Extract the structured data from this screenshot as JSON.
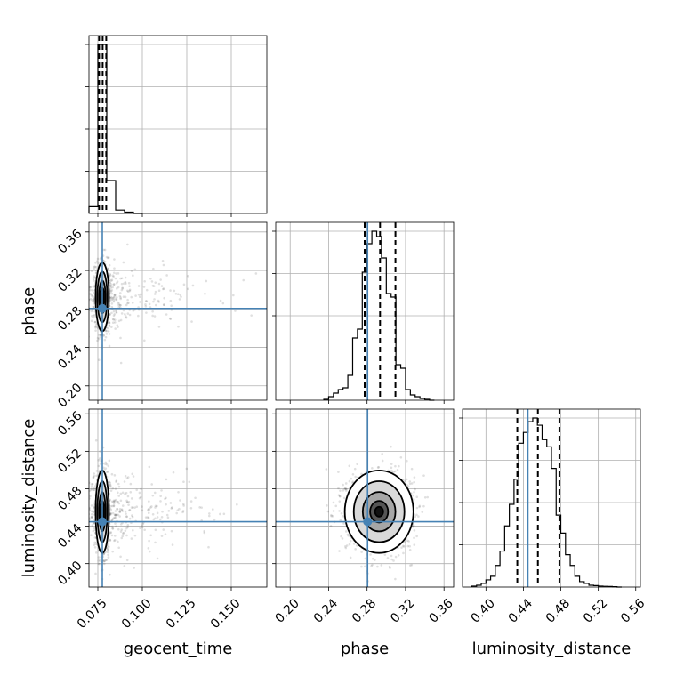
{
  "chart_data": {
    "type": "scatter",
    "subtype": "corner-plot",
    "parameters": [
      "geocent_time",
      "phase",
      "luminosity_distance"
    ],
    "axis_labels": {
      "geocent_time": "geocent_time",
      "phase": "phase",
      "luminosity_distance": "luminosity_distance"
    },
    "ranges": {
      "geocent_time": [
        0.07,
        0.17
      ],
      "phase": [
        0.185,
        0.37
      ],
      "luminosity_distance": [
        0.375,
        0.565
      ]
    },
    "ticks": {
      "geocent_time": [
        "0.075",
        "0.100",
        "0.125",
        "0.150"
      ],
      "phase": [
        "0.20",
        "0.24",
        "0.28",
        "0.32",
        "0.36"
      ],
      "luminosity_distance": [
        "0.40",
        "0.44",
        "0.48",
        "0.52",
        "0.56"
      ]
    },
    "truths": {
      "geocent_time": 0.0775,
      "phase": 0.2805,
      "luminosity_distance": 0.4448
    },
    "quantiles": {
      "geocent_time": [
        0.0757,
        0.0777,
        0.0797
      ],
      "phase": [
        0.2775,
        0.2935,
        0.3095
      ],
      "luminosity_distance": [
        0.4335,
        0.4555,
        0.4785
      ]
    },
    "histograms": {
      "geocent_time": {
        "edges": [
          0.07,
          0.075,
          0.08,
          0.085,
          0.09,
          0.095,
          0.1
        ],
        "counts": [
          0.04,
          1.0,
          0.195,
          0.02,
          0.008,
          0.0
        ]
      },
      "phase": {
        "edges": [
          0.235,
          0.24,
          0.245,
          0.25,
          0.255,
          0.26,
          0.265,
          0.27,
          0.275,
          0.28,
          0.285,
          0.29,
          0.295,
          0.3,
          0.305,
          0.31,
          0.315,
          0.32,
          0.325,
          0.33,
          0.335,
          0.34,
          0.345,
          0.35
        ],
        "counts": [
          0.005,
          0.02,
          0.04,
          0.06,
          0.07,
          0.14,
          0.35,
          0.4,
          0.72,
          0.88,
          0.95,
          0.92,
          0.8,
          0.6,
          0.58,
          0.2,
          0.18,
          0.06,
          0.03,
          0.02,
          0.01,
          0.005,
          0.0
        ]
      },
      "luminosity_distance": {
        "edges": [
          0.385,
          0.39,
          0.395,
          0.4,
          0.405,
          0.41,
          0.415,
          0.42,
          0.425,
          0.43,
          0.435,
          0.44,
          0.445,
          0.45,
          0.455,
          0.46,
          0.465,
          0.47,
          0.475,
          0.48,
          0.485,
          0.49,
          0.495,
          0.5,
          0.505,
          0.51,
          0.515,
          0.52,
          0.525,
          0.53,
          0.535,
          0.54,
          0.545
        ],
        "counts": [
          0.005,
          0.01,
          0.02,
          0.04,
          0.06,
          0.12,
          0.2,
          0.34,
          0.46,
          0.6,
          0.8,
          0.86,
          0.92,
          0.94,
          0.9,
          0.82,
          0.78,
          0.66,
          0.4,
          0.3,
          0.18,
          0.12,
          0.06,
          0.03,
          0.02,
          0.01,
          0.008,
          0.005,
          0.004,
          0.003,
          0.002,
          0.0
        ]
      }
    },
    "posterior_peaks": {
      "geocent_time": 0.0775,
      "phase": 0.2925,
      "luminosity_distance": 0.4555
    },
    "grid": true
  }
}
